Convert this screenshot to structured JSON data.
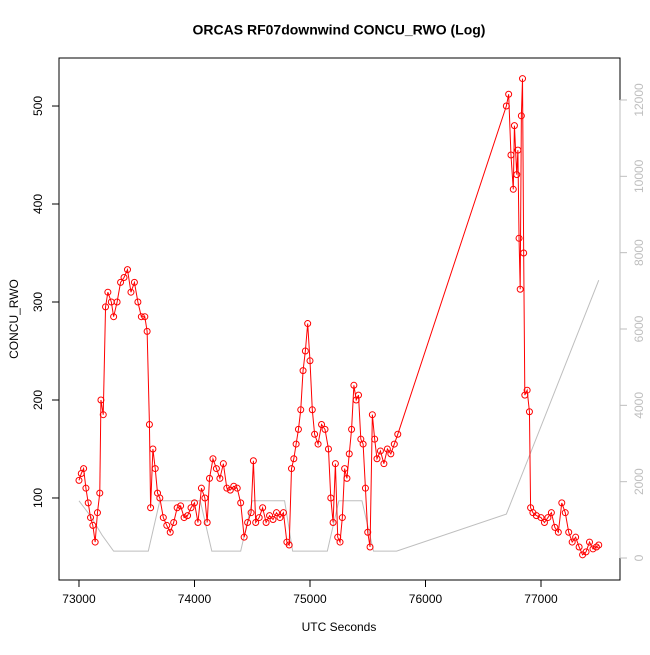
{
  "chart_data": {
    "type": "line",
    "title": "ORCAS RF07downwind CONCU_RWO (Log)",
    "x_label": "UTC Seconds",
    "y_label": "CONCU_RWO",
    "xlim": [
      72827,
      77684
    ],
    "xticks": [
      73000,
      74000,
      75000,
      76000,
      77000
    ],
    "ylim": [
      16.3,
      549
    ],
    "yticks": [
      100,
      200,
      300,
      400,
      500
    ],
    "y2lim": [
      -576,
      13100
    ],
    "y2ticks": [
      0,
      2000,
      4000,
      6000,
      8000,
      10000,
      12000
    ],
    "series": [
      {
        "color": "#ff0000",
        "markers": true,
        "x": [
          73000,
          73020,
          73040,
          73060,
          73080,
          73100,
          73120,
          73140,
          73160,
          73180,
          73190,
          73210,
          73230,
          73250,
          73280,
          73300,
          73330,
          73360,
          73390,
          73420,
          73450,
          73480,
          73510,
          73540,
          73570,
          73590,
          73610,
          73620,
          73640,
          73660,
          73680,
          73700,
          73730,
          73760,
          73790,
          73820,
          73850,
          73880,
          73910,
          73940,
          73970,
          74000,
          74030,
          74060,
          74090,
          74110,
          74130,
          74160,
          74190,
          74220,
          74250,
          74280,
          74310,
          74340,
          74370,
          74400,
          74430,
          74460,
          74490,
          74510,
          74530,
          74560,
          74590,
          74620,
          74650,
          74680,
          74710,
          74740,
          74770,
          74800,
          74820,
          74840,
          74860,
          74880,
          74900,
          74920,
          74940,
          74960,
          74980,
          75000,
          75020,
          75040,
          75070,
          75100,
          75130,
          75160,
          75180,
          75200,
          75220,
          75240,
          75260,
          75280,
          75300,
          75320,
          75340,
          75360,
          75380,
          75400,
          75420,
          75440,
          75460,
          75480,
          75500,
          75520,
          75540,
          75560,
          75580,
          75610,
          75640,
          75670,
          75700,
          75730,
          75760,
          76700,
          76720,
          76740,
          76760,
          76770,
          76790,
          76800,
          76810,
          76820,
          76830,
          76840,
          76850,
          76860,
          76880,
          76900,
          76910,
          76930,
          76960,
          77000,
          77030,
          77060,
          77090,
          77120,
          77150,
          77180,
          77210,
          77240,
          77270,
          77300,
          77330,
          77360,
          77390,
          77420,
          77450,
          77480,
          77500
        ],
        "values": [
          118,
          125,
          130,
          110,
          95,
          80,
          72,
          55,
          85,
          105,
          200,
          185,
          295,
          310,
          300,
          285,
          300,
          320,
          325,
          333,
          310,
          320,
          300,
          285,
          285,
          270,
          175,
          90,
          150,
          130,
          105,
          100,
          80,
          72,
          65,
          75,
          90,
          92,
          80,
          82,
          90,
          95,
          75,
          110,
          100,
          75,
          120,
          140,
          130,
          120,
          135,
          110,
          108,
          112,
          110,
          95,
          60,
          75,
          85,
          138,
          75,
          80,
          90,
          75,
          82,
          78,
          85,
          80,
          85,
          55,
          52,
          130,
          140,
          155,
          170,
          190,
          230,
          250,
          278,
          240,
          190,
          165,
          155,
          175,
          170,
          150,
          100,
          75,
          135,
          60,
          55,
          80,
          130,
          120,
          145,
          170,
          215,
          200,
          205,
          160,
          155,
          110,
          65,
          50,
          185,
          160,
          140,
          148,
          135,
          150,
          145,
          155,
          165,
          500,
          512,
          450,
          415,
          480,
          430,
          455,
          365,
          313,
          490,
          528,
          350,
          205,
          210,
          188,
          90,
          85,
          82,
          80,
          75,
          80,
          85,
          70,
          65,
          95,
          85,
          65,
          55,
          60,
          50,
          42,
          45,
          55,
          48,
          50,
          52
        ]
      },
      {
        "color": "#bebebe",
        "axis": "y2",
        "markers": false,
        "x": [
          73000,
          73100,
          73200,
          73300,
          73600,
          73700,
          74050,
          74150,
          74400,
          74500,
          74780,
          74850,
          75150,
          75250,
          75450,
          75550,
          75750,
          76700,
          77500
        ],
        "values": [
          1500,
          1100,
          600,
          180,
          180,
          1500,
          1500,
          180,
          180,
          1500,
          1500,
          180,
          180,
          1500,
          1500,
          180,
          180,
          1150,
          7280
        ]
      }
    ]
  }
}
